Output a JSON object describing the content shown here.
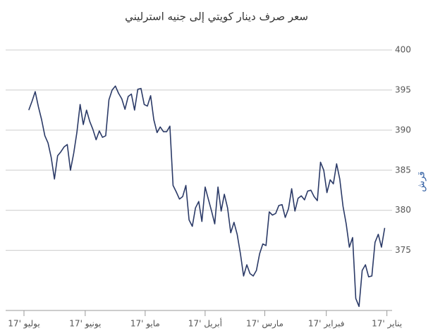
{
  "chart_data": {
    "type": "line",
    "title": "سعر صرف دينار كويتي إلى جنيه استرليني",
    "y_label": "قرش",
    "direction": "rtl",
    "color": "#2b3a67",
    "grid": true,
    "ylim": [
      367.5,
      400
    ],
    "yticks": [
      375,
      380,
      385,
      390,
      395,
      400
    ],
    "xlim": [
      -1,
      118
    ],
    "xticks": [
      {
        "value": -0.7,
        "label": "يناير '17"
      },
      {
        "value": 18.2,
        "label": "فبراير '17"
      },
      {
        "value": 37.4,
        "label": "مارس '17"
      },
      {
        "value": 56,
        "label": "أبريل '17"
      },
      {
        "value": 74.7,
        "label": "مايو '17"
      },
      {
        "value": 93.4,
        "label": "يونيو '17"
      },
      {
        "value": 112.5,
        "label": "يوليو '17"
      }
    ],
    "values": [
      377.8,
      375.4,
      377.0,
      376.0,
      371.8,
      371.7,
      373.2,
      372.5,
      368.0,
      369.0,
      376.6,
      375.4,
      378.3,
      380.5,
      383.9,
      385.8,
      383.3,
      383.8,
      382.2,
      385.0,
      386.0,
      381.2,
      381.7,
      382.5,
      382.4,
      381.3,
      381.8,
      381.5,
      379.9,
      382.7,
      380.2,
      379.1,
      380.7,
      380.6,
      379.6,
      379.4,
      379.8,
      375.6,
      375.8,
      374.6,
      372.5,
      371.8,
      372.1,
      373.2,
      371.8,
      374.6,
      377.0,
      378.5,
      377.2,
      380.3,
      382.0,
      379.9,
      382.9,
      378.3,
      379.9,
      381.4,
      382.9,
      378.6,
      381.1,
      380.3,
      378.0,
      378.8,
      383.1,
      381.7,
      381.4,
      382.3,
      383.1,
      390.5,
      389.8,
      389.8,
      390.4,
      389.7,
      391.3,
      394.3,
      393.0,
      393.2,
      395.2,
      395.1,
      392.5,
      394.5,
      394.2,
      392.6,
      393.9,
      394.6,
      395.5,
      395.0,
      393.8,
      389.3,
      389.1,
      389.9,
      388.8,
      390.1,
      391.1,
      392.5,
      390.7,
      393.2,
      389.7,
      387.1,
      385.0,
      388.2,
      387.9,
      387.3,
      386.8,
      383.9,
      386.6,
      388.4,
      389.3,
      391.3,
      392.9,
      394.8,
      393.6,
      392.5
    ]
  }
}
